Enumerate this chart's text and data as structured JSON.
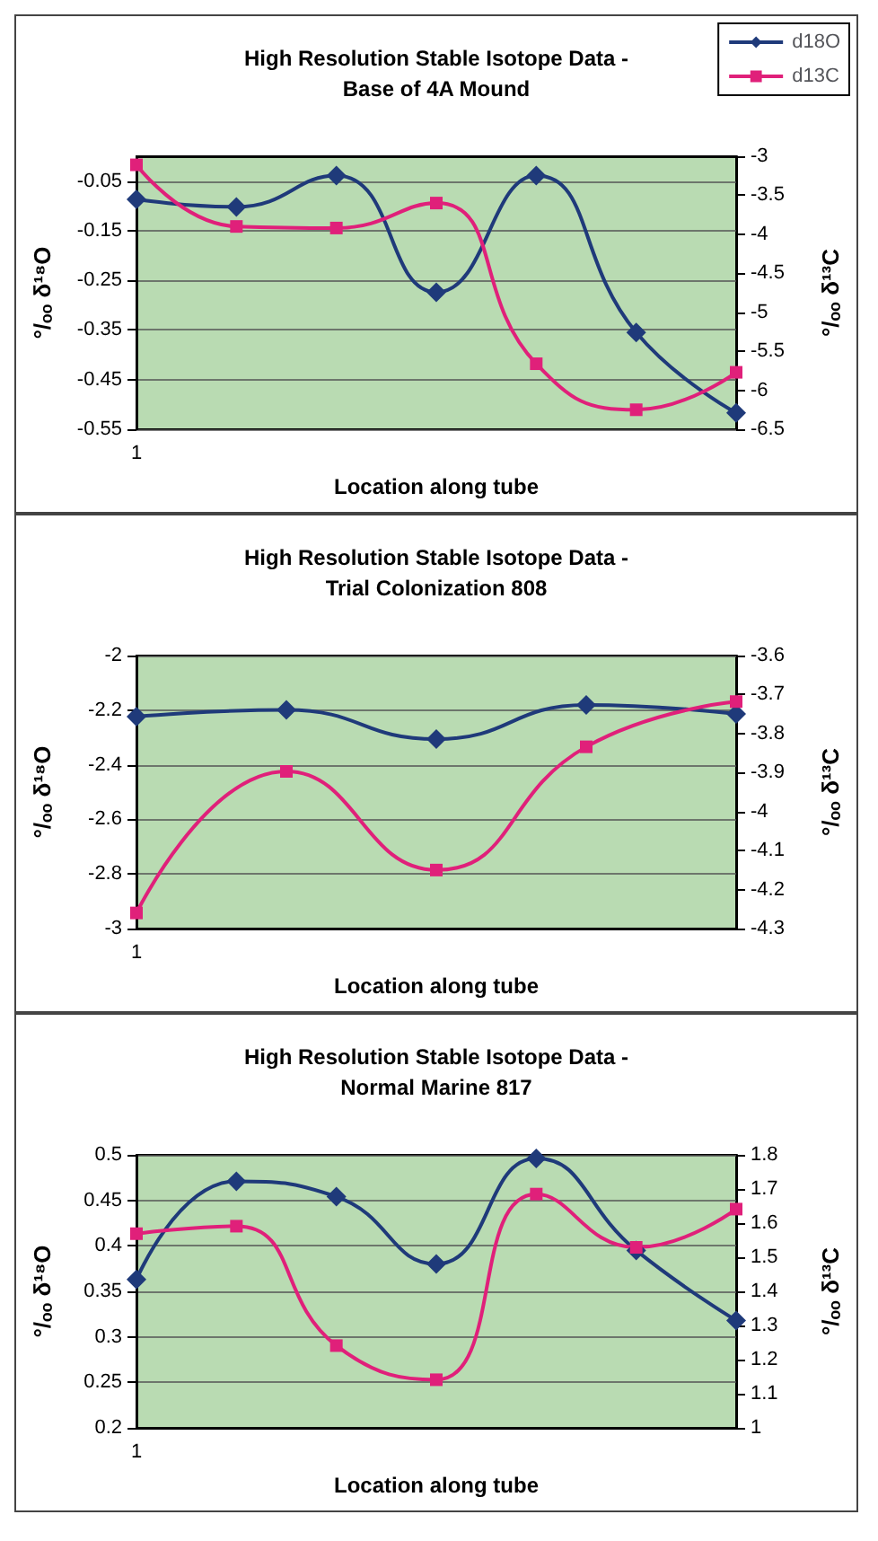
{
  "chart_data": [
    {
      "type": "line",
      "title": "High Resolution Stable Isotope Data -\nBase of 4A Mound",
      "xlabel": "Location along tube",
      "ylabel": "°/ₒₒ δ¹⁸O",
      "y2label": "°/ₒₒ δ¹³C",
      "categories": [
        "1",
        null,
        null,
        null,
        null,
        null,
        null
      ],
      "series": [
        {
          "name": "d18O",
          "color": "#1f3a7a",
          "marker": "diamond",
          "values": [
            -0.087,
            -0.102,
            -0.039,
            -0.274,
            -0.039,
            -0.355,
            -0.517
          ]
        },
        {
          "name": "d13C",
          "color": "#e0207a",
          "marker": "square",
          "axis": "y2",
          "values": [
            -3.11,
            -3.9,
            -3.92,
            -3.6,
            -5.66,
            -6.25,
            -5.77
          ]
        }
      ],
      "ylim": [
        -0.55,
        0
      ],
      "yticks": [
        -0.55,
        -0.45,
        -0.35,
        -0.25,
        -0.15,
        -0.05
      ],
      "y2lim": [
        -6.5,
        -3
      ],
      "y2ticks": [
        -6.5,
        -6,
        -5.5,
        -5,
        -4.5,
        -4,
        -3.5,
        -3
      ],
      "grid": "y",
      "legend": "top right"
    },
    {
      "type": "line",
      "title": "High Resolution Stable Isotope Data -\nTrial Colonization 808",
      "xlabel": "Location along tube",
      "ylabel": "°/ₒₒ δ¹⁸O",
      "y2label": "°/ₒₒ δ¹³C",
      "categories": [
        "1",
        null,
        null,
        null,
        null
      ],
      "series": [
        {
          "color": "#1f3a7a",
          "marker": "diamond",
          "values": [
            -2.224,
            -2.199,
            -2.306,
            -2.181,
            -2.214
          ]
        },
        {
          "color": "#e0207a",
          "marker": "square",
          "axis": "y2",
          "values": [
            -4.26,
            -3.897,
            -4.15,
            -3.834,
            -3.718
          ]
        }
      ],
      "ylim": [
        -3,
        -2
      ],
      "yticks": [
        -3,
        -2.8,
        -2.6,
        -2.4,
        -2.2,
        -2
      ],
      "y2lim": [
        -4.3,
        -3.6
      ],
      "y2ticks": [
        -4.3,
        -4.2,
        -4.1,
        -4,
        -3.9,
        -3.8,
        -3.7,
        -3.6
      ],
      "grid": "y",
      "legend": false
    },
    {
      "type": "line",
      "title": "High Resolution Stable Isotope Data -\nNormal Marine 817",
      "xlabel": "Location along tube",
      "ylabel": "°/ₒₒ δ¹⁸O",
      "y2label": "°/ₒₒ δ¹³C",
      "categories": [
        "1",
        null,
        null,
        null,
        null,
        null,
        null
      ],
      "series": [
        {
          "color": "#1f3a7a",
          "marker": "diamond",
          "values": [
            0.363,
            0.471,
            0.454,
            0.38,
            0.496,
            0.395,
            0.318
          ]
        },
        {
          "color": "#e0207a",
          "marker": "square",
          "axis": "y2",
          "values": [
            1.569,
            1.591,
            1.241,
            1.141,
            1.685,
            1.529,
            1.641
          ]
        }
      ],
      "ylim": [
        0.2,
        0.5
      ],
      "yticks": [
        0.2,
        0.25,
        0.3,
        0.35,
        0.4,
        0.45,
        0.5
      ],
      "y2lim": [
        1,
        1.8
      ],
      "y2ticks": [
        1,
        1.1,
        1.2,
        1.3,
        1.4,
        1.5,
        1.6,
        1.7,
        1.8
      ],
      "grid": "y",
      "legend": false
    }
  ]
}
